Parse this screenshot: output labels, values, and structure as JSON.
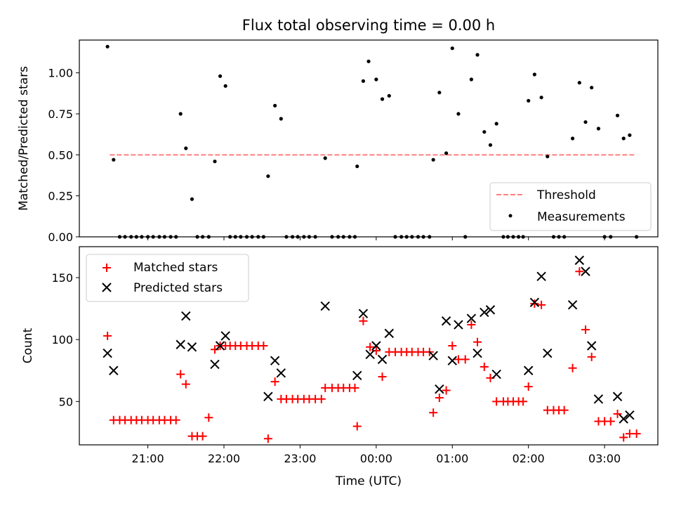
{
  "chart_data": [
    {
      "type": "scatter",
      "title": "Flux total observing time = 0.00 h",
      "xlabel": "",
      "ylabel": "Matched/Predicted stars",
      "ylim": [
        0,
        1.2
      ],
      "y_ticks": [
        "0.00",
        "0.25",
        "0.50",
        "0.75",
        "1.00"
      ],
      "legend_position": "lower-right",
      "threshold": {
        "name": "Threshold",
        "value": 0.5,
        "x_range": [
          20.5,
          27.4
        ],
        "color": "#ff7f7f",
        "style": "dashed"
      },
      "series": [
        {
          "name": "Measurements",
          "color": "#000000",
          "marker": "dot",
          "points": [
            [
              20.47,
              1.16
            ],
            [
              20.55,
              0.47
            ],
            [
              20.63,
              0
            ],
            [
              20.7,
              0
            ],
            [
              20.78,
              0
            ],
            [
              20.85,
              0
            ],
            [
              20.92,
              0
            ],
            [
              21.0,
              0
            ],
            [
              21.07,
              0
            ],
            [
              21.15,
              0
            ],
            [
              21.22,
              0
            ],
            [
              21.3,
              0
            ],
            [
              21.37,
              0
            ],
            [
              21.43,
              0.75
            ],
            [
              21.5,
              0.54
            ],
            [
              21.58,
              0.23
            ],
            [
              21.65,
              0
            ],
            [
              21.72,
              0
            ],
            [
              21.8,
              0
            ],
            [
              21.88,
              0.46
            ],
            [
              21.95,
              0.98
            ],
            [
              22.02,
              0.92
            ],
            [
              22.08,
              0
            ],
            [
              22.15,
              0
            ],
            [
              22.22,
              0
            ],
            [
              22.3,
              0
            ],
            [
              22.37,
              0
            ],
            [
              22.45,
              0
            ],
            [
              22.52,
              0
            ],
            [
              22.58,
              0.37
            ],
            [
              22.67,
              0.8
            ],
            [
              22.75,
              0.72
            ],
            [
              22.82,
              0
            ],
            [
              22.9,
              0
            ],
            [
              22.97,
              0
            ],
            [
              23.05,
              0
            ],
            [
              23.12,
              0
            ],
            [
              23.2,
              0
            ],
            [
              23.33,
              0.48
            ],
            [
              23.42,
              0
            ],
            [
              23.5,
              0
            ],
            [
              23.57,
              0
            ],
            [
              23.65,
              0
            ],
            [
              23.72,
              0
            ],
            [
              23.75,
              0.43
            ],
            [
              23.83,
              0.95
            ],
            [
              23.9,
              1.07
            ],
            [
              24.0,
              0.96
            ],
            [
              24.08,
              0.84
            ],
            [
              24.17,
              0.86
            ],
            [
              24.25,
              0
            ],
            [
              24.33,
              0
            ],
            [
              24.4,
              0
            ],
            [
              24.47,
              0
            ],
            [
              24.55,
              0
            ],
            [
              24.62,
              0
            ],
            [
              24.7,
              0
            ],
            [
              24.75,
              0.47
            ],
            [
              24.83,
              0.88
            ],
            [
              24.92,
              0.51
            ],
            [
              25.0,
              1.15
            ],
            [
              25.08,
              0.75
            ],
            [
              25.17,
              0
            ],
            [
              25.25,
              0.96
            ],
            [
              25.33,
              1.11
            ],
            [
              25.42,
              0.64
            ],
            [
              25.5,
              0.56
            ],
            [
              25.58,
              0.69
            ],
            [
              25.67,
              0
            ],
            [
              25.73,
              0
            ],
            [
              25.8,
              0
            ],
            [
              25.87,
              0
            ],
            [
              25.93,
              0
            ],
            [
              26.0,
              0.83
            ],
            [
              26.08,
              0.99
            ],
            [
              26.17,
              0.85
            ],
            [
              26.25,
              0.49
            ],
            [
              26.33,
              0
            ],
            [
              26.4,
              0
            ],
            [
              26.47,
              0
            ],
            [
              26.58,
              0.6
            ],
            [
              26.67,
              0.94
            ],
            [
              26.75,
              0.7
            ],
            [
              26.83,
              0.91
            ],
            [
              26.92,
              0.66
            ],
            [
              27.0,
              0
            ],
            [
              27.08,
              0
            ],
            [
              27.17,
              0.74
            ],
            [
              27.25,
              0.6
            ],
            [
              27.33,
              0.62
            ],
            [
              27.42,
              0
            ]
          ]
        }
      ]
    },
    {
      "type": "scatter",
      "title": "",
      "xlabel": "Time (UTC)",
      "ylabel": "Count",
      "ylim": [
        15,
        175
      ],
      "y_ticks": [
        "50",
        "100",
        "150"
      ],
      "x_ticks": [
        "21:00",
        "22:00",
        "23:00",
        "00:00",
        "01:00",
        "02:00",
        "03:00"
      ],
      "legend_position": "upper-left",
      "series": [
        {
          "name": "Matched stars",
          "color": "#ff0000",
          "marker": "plus",
          "points": [
            [
              20.47,
              103
            ],
            [
              20.55,
              35
            ],
            [
              20.63,
              35
            ],
            [
              20.7,
              35
            ],
            [
              20.78,
              35
            ],
            [
              20.85,
              35
            ],
            [
              20.92,
              35
            ],
            [
              21.0,
              35
            ],
            [
              21.07,
              35
            ],
            [
              21.15,
              35
            ],
            [
              21.22,
              35
            ],
            [
              21.3,
              35
            ],
            [
              21.37,
              35
            ],
            [
              21.43,
              72
            ],
            [
              21.5,
              64
            ],
            [
              21.58,
              22
            ],
            [
              21.65,
              22
            ],
            [
              21.72,
              22
            ],
            [
              21.8,
              37
            ],
            [
              21.88,
              92
            ],
            [
              21.95,
              95
            ],
            [
              22.02,
              95
            ],
            [
              22.08,
              95
            ],
            [
              22.15,
              95
            ],
            [
              22.22,
              95
            ],
            [
              22.3,
              95
            ],
            [
              22.37,
              95
            ],
            [
              22.45,
              95
            ],
            [
              22.52,
              95
            ],
            [
              22.58,
              20
            ],
            [
              22.67,
              66
            ],
            [
              22.75,
              52
            ],
            [
              22.82,
              52
            ],
            [
              22.9,
              52
            ],
            [
              22.97,
              52
            ],
            [
              23.05,
              52
            ],
            [
              23.12,
              52
            ],
            [
              23.2,
              52
            ],
            [
              23.28,
              52
            ],
            [
              23.33,
              61
            ],
            [
              23.42,
              61
            ],
            [
              23.5,
              61
            ],
            [
              23.57,
              61
            ],
            [
              23.65,
              61
            ],
            [
              23.72,
              61
            ],
            [
              23.75,
              30
            ],
            [
              23.83,
              115
            ],
            [
              23.92,
              94
            ],
            [
              24.0,
              91
            ],
            [
              24.08,
              70
            ],
            [
              24.17,
              90
            ],
            [
              24.25,
              90
            ],
            [
              24.33,
              90
            ],
            [
              24.4,
              90
            ],
            [
              24.47,
              90
            ],
            [
              24.55,
              90
            ],
            [
              24.62,
              90
            ],
            [
              24.7,
              90
            ],
            [
              24.75,
              41
            ],
            [
              24.83,
              53
            ],
            [
              24.92,
              59
            ],
            [
              25.0,
              95
            ],
            [
              25.08,
              84
            ],
            [
              25.17,
              84
            ],
            [
              25.25,
              112
            ],
            [
              25.33,
              98
            ],
            [
              25.42,
              78
            ],
            [
              25.5,
              69
            ],
            [
              25.58,
              50
            ],
            [
              25.67,
              50
            ],
            [
              25.73,
              50
            ],
            [
              25.8,
              50
            ],
            [
              25.87,
              50
            ],
            [
              25.93,
              50
            ],
            [
              26.0,
              62
            ],
            [
              26.08,
              129
            ],
            [
              26.17,
              128
            ],
            [
              26.25,
              43
            ],
            [
              26.33,
              43
            ],
            [
              26.4,
              43
            ],
            [
              26.47,
              43
            ],
            [
              26.58,
              77
            ],
            [
              26.67,
              155
            ],
            [
              26.75,
              108
            ],
            [
              26.83,
              86
            ],
            [
              26.92,
              34
            ],
            [
              27.0,
              34
            ],
            [
              27.08,
              34
            ],
            [
              27.17,
              40
            ],
            [
              27.25,
              21
            ],
            [
              27.33,
              24
            ],
            [
              27.42,
              24
            ]
          ]
        },
        {
          "name": "Predicted stars",
          "color": "#000000",
          "marker": "x",
          "points": [
            [
              20.47,
              89
            ],
            [
              20.55,
              75
            ],
            [
              21.43,
              96
            ],
            [
              21.5,
              119
            ],
            [
              21.58,
              94
            ],
            [
              21.88,
              80
            ],
            [
              21.95,
              95
            ],
            [
              22.02,
              103
            ],
            [
              22.58,
              54
            ],
            [
              22.67,
              83
            ],
            [
              22.75,
              73
            ],
            [
              23.33,
              127
            ],
            [
              23.75,
              71
            ],
            [
              23.83,
              121
            ],
            [
              23.92,
              88
            ],
            [
              24.0,
              95
            ],
            [
              24.08,
              84
            ],
            [
              24.17,
              105
            ],
            [
              24.75,
              87
            ],
            [
              24.83,
              60
            ],
            [
              24.92,
              115
            ],
            [
              25.0,
              83
            ],
            [
              25.08,
              112
            ],
            [
              25.25,
              117
            ],
            [
              25.33,
              89
            ],
            [
              25.42,
              122
            ],
            [
              25.5,
              124
            ],
            [
              25.58,
              72
            ],
            [
              26.0,
              75
            ],
            [
              26.08,
              130
            ],
            [
              26.17,
              151
            ],
            [
              26.25,
              89
            ],
            [
              26.58,
              128
            ],
            [
              26.67,
              164
            ],
            [
              26.75,
              155
            ],
            [
              26.83,
              95
            ],
            [
              26.92,
              52
            ],
            [
              27.17,
              54
            ],
            [
              27.25,
              36
            ],
            [
              27.33,
              39
            ]
          ]
        }
      ]
    }
  ]
}
